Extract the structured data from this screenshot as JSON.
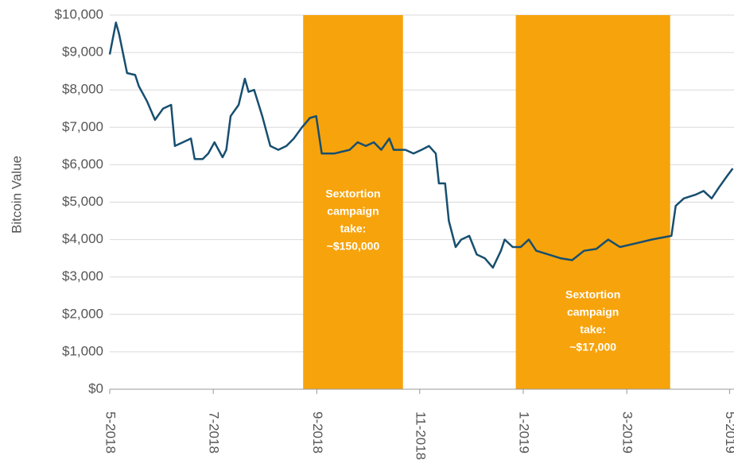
{
  "chart_data": {
    "type": "line",
    "y_label": "Bitcoin Value",
    "xlim": [
      2018.333,
      2019.34
    ],
    "xticks": [
      {
        "value": 2018.333,
        "label": "5-2018"
      },
      {
        "value": 2018.5,
        "label": "7-2018"
      },
      {
        "value": 2018.667,
        "label": "9-2018"
      },
      {
        "value": 2018.833,
        "label": "11-2018"
      },
      {
        "value": 2019.0,
        "label": "1-2019"
      },
      {
        "value": 2019.167,
        "label": "3-2019"
      },
      {
        "value": 2019.333,
        "label": "5-2019"
      }
    ],
    "ylim": [
      0,
      10000
    ],
    "yticks": [
      {
        "value": 0,
        "label": "$0"
      },
      {
        "value": 1000,
        "label": "$1,000"
      },
      {
        "value": 2000,
        "label": "$2,000"
      },
      {
        "value": 3000,
        "label": "$3,000"
      },
      {
        "value": 4000,
        "label": "$4,000"
      },
      {
        "value": 5000,
        "label": "$5,000"
      },
      {
        "value": 6000,
        "label": "$6,000"
      },
      {
        "value": 7000,
        "label": "$7,000"
      },
      {
        "value": 8000,
        "label": "$8,000"
      },
      {
        "value": 9000,
        "label": "$9,000"
      },
      {
        "value": 10000,
        "label": "$10,000"
      }
    ],
    "grid": true,
    "color": "#174f6f",
    "x": [
      2018.333,
      2018.343,
      2018.348,
      2018.361,
      2018.374,
      2018.38,
      2018.393,
      2018.406,
      2018.419,
      2018.432,
      2018.438,
      2018.451,
      2018.464,
      2018.47,
      2018.483,
      2018.492,
      2018.502,
      2018.515,
      2018.521,
      2018.528,
      2018.541,
      2018.551,
      2018.557,
      2018.566,
      2018.579,
      2018.592,
      2018.605,
      2018.618,
      2018.63,
      2018.643,
      2018.656,
      2018.666,
      2018.675,
      2018.695,
      2018.72,
      2018.733,
      2018.746,
      2018.759,
      2018.771,
      2018.784,
      2018.791,
      2018.81,
      2018.823,
      2018.836,
      2018.848,
      2018.859,
      2018.864,
      2018.874,
      2018.88,
      2018.891,
      2018.9,
      2018.913,
      2018.925,
      2018.938,
      2018.951,
      2018.964,
      2018.97,
      2018.983,
      2018.996,
      2019.009,
      2019.021,
      2019.041,
      2019.06,
      2019.079,
      2019.098,
      2019.118,
      2019.137,
      2019.156,
      2019.182,
      2019.207,
      2019.239,
      2019.246,
      2019.259,
      2019.278,
      2019.291,
      2019.304,
      2019.316,
      2019.329,
      2019.338
    ],
    "values": [
      8950,
      9800,
      9500,
      8450,
      8400,
      8100,
      7700,
      7200,
      7500,
      7600,
      6500,
      6600,
      6700,
      6150,
      6150,
      6300,
      6600,
      6200,
      6400,
      7300,
      7600,
      8300,
      7950,
      8000,
      7300,
      6500,
      6400,
      6500,
      6700,
      7000,
      7250,
      7300,
      6300,
      6300,
      6400,
      6600,
      6500,
      6600,
      6400,
      6700,
      6400,
      6400,
      6300,
      6400,
      6500,
      6300,
      5500,
      5500,
      4500,
      3800,
      4000,
      4100,
      3600,
      3500,
      3250,
      3700,
      4000,
      3800,
      3800,
      4000,
      3700,
      3600,
      3500,
      3450,
      3700,
      3750,
      4000,
      3800,
      3900,
      4000,
      4100,
      4900,
      5100,
      5200,
      5300,
      5100,
      5400,
      5700,
      5900
    ],
    "spans": [
      {
        "x0": 2018.645,
        "x1": 2018.806,
        "color": "#f7a30c",
        "lines": [
          "Sextortion",
          "campaign",
          "take:",
          "~$150,000"
        ]
      },
      {
        "x0": 2018.988,
        "x1": 2019.237,
        "color": "#f7a30c",
        "lines": [
          "Sextortion",
          "campaign",
          "take:",
          "~$17,000"
        ]
      }
    ]
  }
}
